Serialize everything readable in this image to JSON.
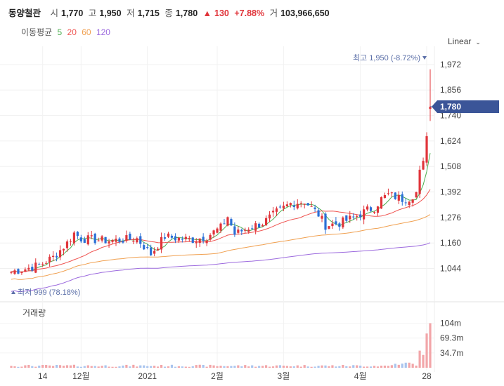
{
  "header": {
    "stock_name": "동양철관",
    "open_label": "시",
    "open": "1,770",
    "high_label": "고",
    "high": "1,950",
    "low_label": "저",
    "low": "1,715",
    "close_label": "종",
    "close": "1,780",
    "change_arrow": "▲",
    "change": "130",
    "change_pct": "+7.88%",
    "volume_label": "거",
    "volume": "103,966,650"
  },
  "ma_legend": {
    "label": "이동평균",
    "items": [
      {
        "period": "5",
        "color": "#4caf50"
      },
      {
        "period": "20",
        "color": "#ef5350"
      },
      {
        "period": "60",
        "color": "#f0a050"
      },
      {
        "period": "120",
        "color": "#9c6ade"
      }
    ]
  },
  "scale_toggle": {
    "label": "Linear",
    "icon": "chevron-down-icon"
  },
  "chart_data": {
    "type": "candlestick",
    "price_ticks": [
      1044,
      1160,
      1276,
      1392,
      1508,
      1624,
      1740,
      1856,
      1972
    ],
    "price_tick_labels": [
      "1,044",
      "1,160",
      "1,276",
      "1,392",
      "1,508",
      "1,624",
      "1,740",
      "1,856",
      "1,972"
    ],
    "price_range": [
      950,
      2010
    ],
    "x_tick_labels": [
      {
        "label": "14",
        "index": 9
      },
      {
        "label": "12월",
        "index": 20
      },
      {
        "label": "2021",
        "index": 39
      },
      {
        "label": "2월",
        "index": 59
      },
      {
        "label": "3월",
        "index": 78
      },
      {
        "label": "4월",
        "index": 100
      },
      {
        "label": "28",
        "index": 119
      }
    ],
    "current_price_tag": "1,780",
    "current_price": 1780,
    "max_annotation": {
      "label": "최고",
      "value": "1,950 (-8.72%)",
      "price": 1950
    },
    "min_annotation": {
      "label": "최저",
      "value": "999 (78.18%)",
      "price": 999
    },
    "volume_title": "거래량",
    "volume_ticks": [
      34.7,
      69.3,
      104
    ],
    "volume_tick_labels": [
      "34.7m",
      "69.3m",
      "104m"
    ],
    "volume_range": [
      0,
      118
    ],
    "up_color": "#e0343a",
    "down_color": "#2b6fd6"
  }
}
